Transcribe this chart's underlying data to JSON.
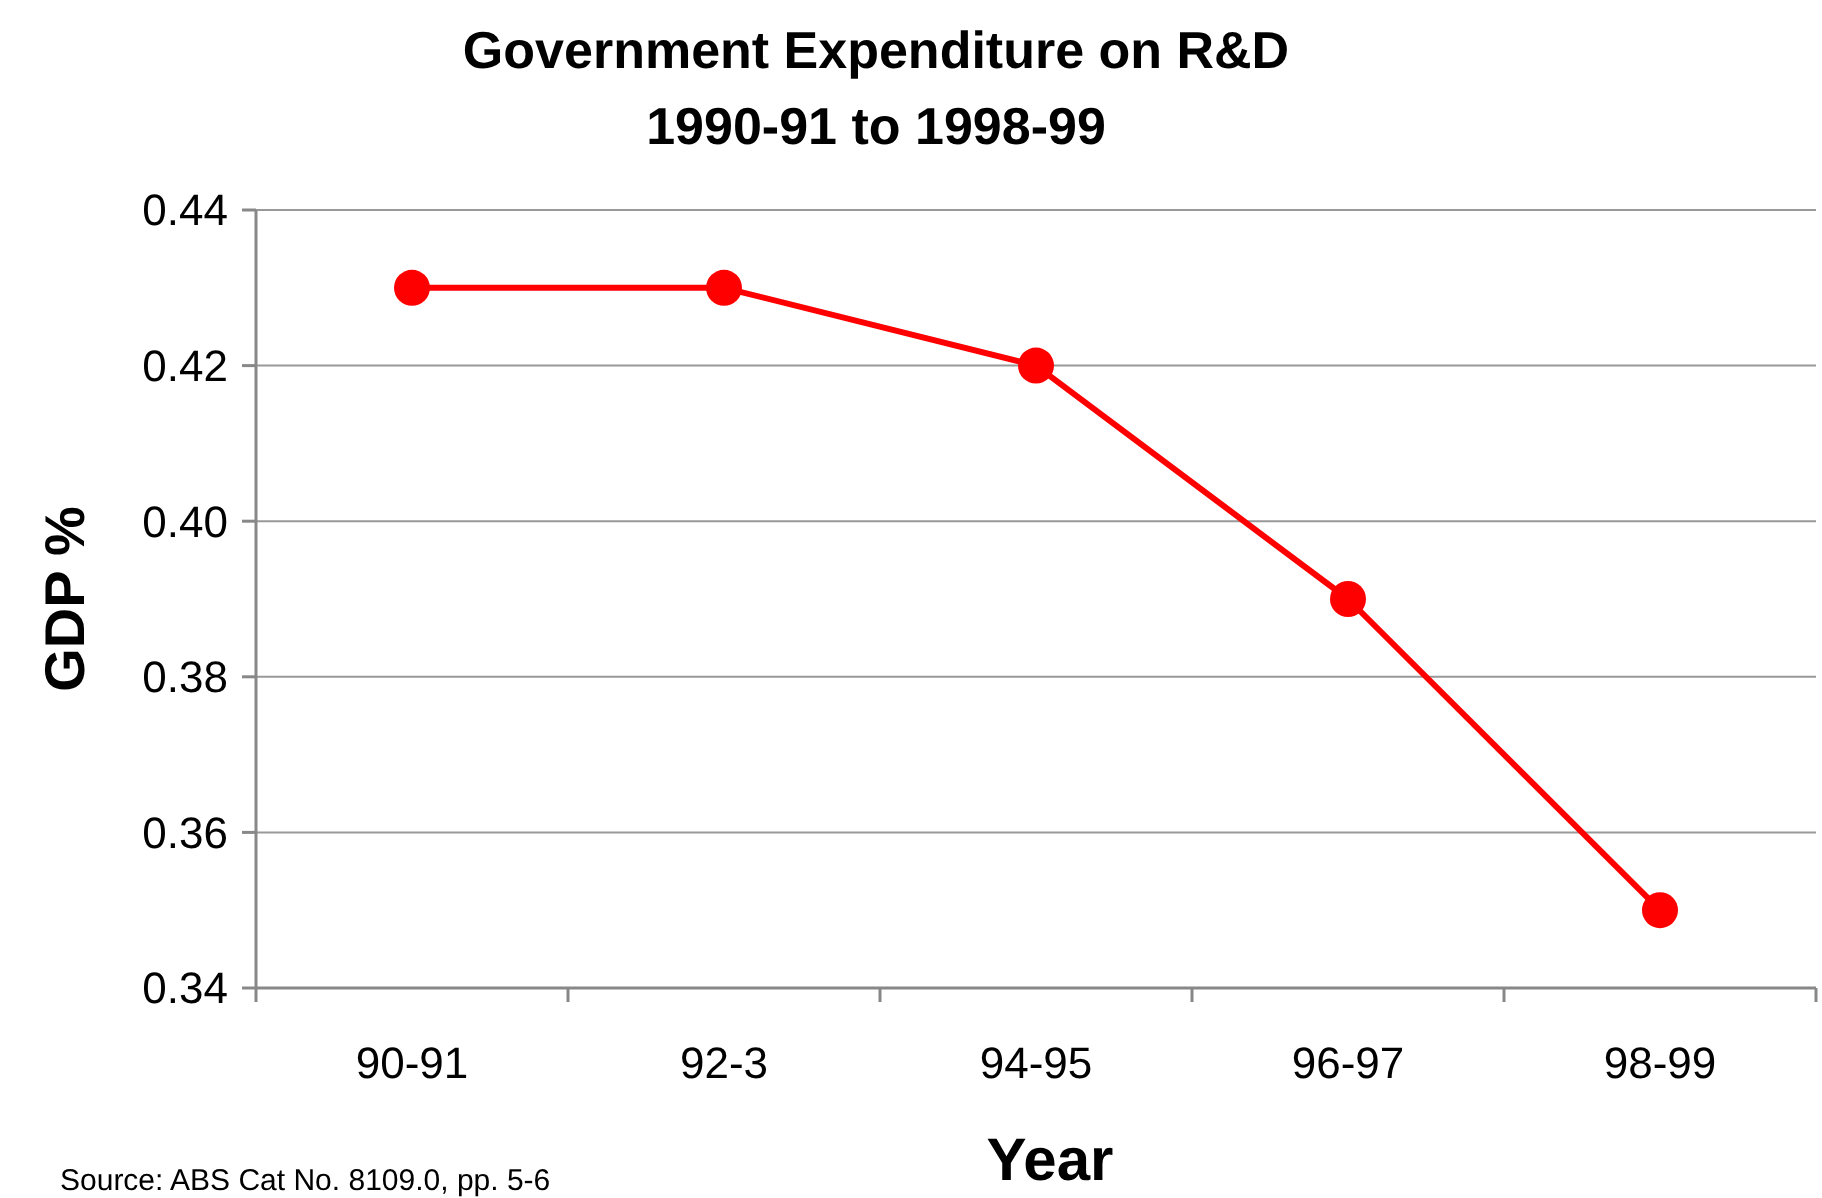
{
  "chart_data": {
    "type": "line",
    "title": "Government Expenditure on R&D\n1990-91 to 1998-99",
    "xlabel": "Year",
    "ylabel": "GDP %",
    "categories": [
      "90-91",
      "92-3",
      "94-95",
      "96-97",
      "98-99"
    ],
    "series": [
      {
        "color": "#ff0000",
        "values": [
          0.43,
          0.43,
          0.42,
          0.39,
          0.35
        ]
      }
    ],
    "ylim": [
      0.34,
      0.44
    ],
    "yticks": [
      {
        "value": 0.34,
        "label": "0.34"
      },
      {
        "value": 0.36,
        "label": "0.36"
      },
      {
        "value": 0.38,
        "label": "0.38"
      },
      {
        "value": 0.4,
        "label": "0.40"
      },
      {
        "value": 0.42,
        "label": "0.42"
      },
      {
        "value": 0.44,
        "label": "0.44"
      }
    ],
    "grid": "y",
    "marker": "circle",
    "line_style": "solid",
    "annotations": [
      "Source: ABS Cat No. 8109.0, pp. 5-6"
    ]
  }
}
